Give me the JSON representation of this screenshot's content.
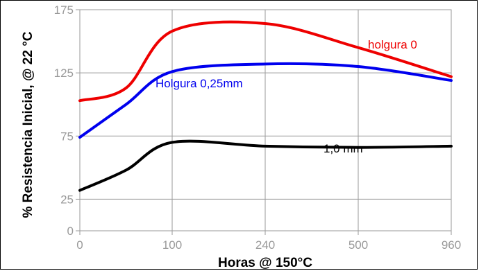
{
  "chart_data": {
    "type": "line",
    "title": "",
    "xlabel": "Horas @ 150°C",
    "ylabel": "% Resistencia Inicial, @ 22 °C",
    "x_ticks": [
      "0",
      "100",
      "240",
      "500",
      "960"
    ],
    "y_ticks": [
      "0",
      "25",
      "75",
      "125",
      "175"
    ],
    "y_tick_values": [
      0,
      25,
      75,
      125,
      175
    ],
    "ylim": [
      0,
      175
    ],
    "grid": true,
    "series": [
      {
        "name": "holgura 0",
        "color": "#ee0000",
        "points": [
          [
            "0",
            103
          ],
          [
            "50",
            113
          ],
          [
            "100",
            158
          ],
          [
            "240",
            164
          ],
          [
            "500",
            145
          ],
          [
            "960",
            122
          ]
        ]
      },
      {
        "name": "Holgura 0,25mm",
        "color": "#0000ee",
        "points": [
          [
            "0",
            74
          ],
          [
            "50",
            100
          ],
          [
            "100",
            126
          ],
          [
            "240",
            132
          ],
          [
            "500",
            130
          ],
          [
            "960",
            119
          ]
        ]
      },
      {
        "name": "1,0 mm",
        "color": "#000000",
        "points": [
          [
            "0",
            32
          ],
          [
            "50",
            48
          ],
          [
            "100",
            70
          ],
          [
            "240",
            67
          ],
          [
            "500",
            66
          ],
          [
            "960",
            67
          ]
        ]
      }
    ]
  }
}
